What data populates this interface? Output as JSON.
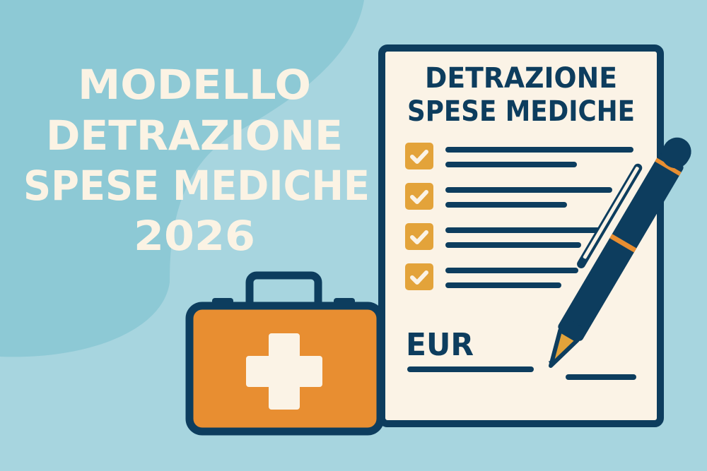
{
  "headline": {
    "lines": [
      "MODELLO",
      "DETRAZIONE",
      "SPESE MEDICHE",
      "2026"
    ]
  },
  "document": {
    "title_lines": [
      "DETRAZIONE",
      "SPESE MEDICHE"
    ],
    "checklist_items": 4,
    "currency_label": "EUR"
  },
  "icons": [
    "medical-kit-icon",
    "document-icon",
    "checkbox-icon",
    "pen-icon"
  ],
  "colors": {
    "background": "#a7d5df",
    "blob": "#8dc9d5",
    "navy": "#0d3d5e",
    "cream": "#fbf3e6",
    "orange": "#e88e31",
    "check": "#e3a33a"
  }
}
